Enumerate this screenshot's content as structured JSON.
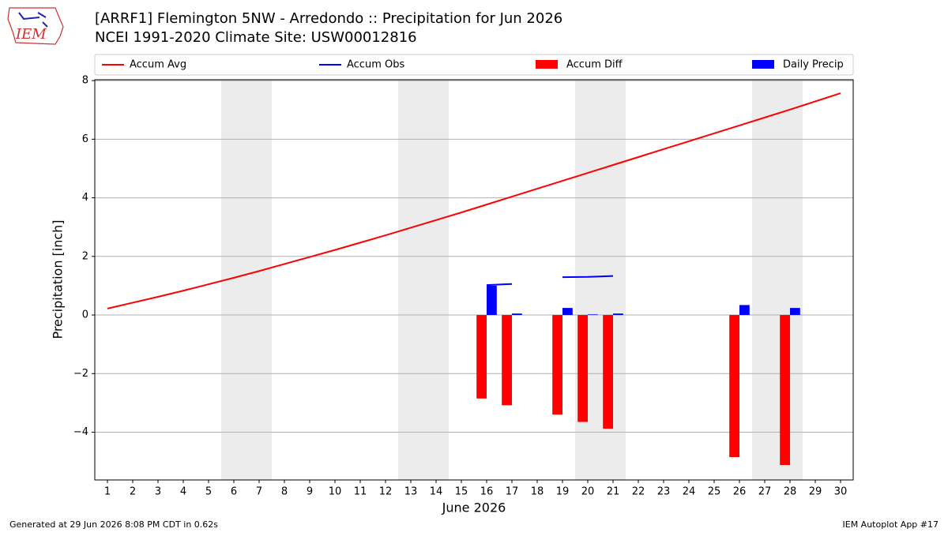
{
  "logo": {
    "text": "IEM"
  },
  "footer": {
    "left": "Generated at 29 Jun 2026 8:08 PM CDT in 0.62s",
    "right": "IEM Autoplot App #17"
  },
  "chart_data": {
    "type": "bar",
    "title": "[ARRF1] Flemington 5NW - Arredondo :: Precipitation for Jun 2026",
    "subtitle": "NCEI 1991-2020 Climate Site: USW00012816",
    "xlabel": "June 2026",
    "ylabel": "Precipitation [inch]",
    "x": [
      1,
      2,
      3,
      4,
      5,
      6,
      7,
      8,
      9,
      10,
      11,
      12,
      13,
      14,
      15,
      16,
      17,
      18,
      19,
      20,
      21,
      22,
      23,
      24,
      25,
      26,
      27,
      28,
      29,
      30
    ],
    "xlim": [
      0.5,
      30.5
    ],
    "xticks": [
      1,
      2,
      3,
      4,
      5,
      6,
      7,
      8,
      9,
      10,
      11,
      12,
      13,
      14,
      15,
      16,
      17,
      18,
      19,
      20,
      21,
      22,
      23,
      24,
      25,
      26,
      27,
      28,
      29,
      30
    ],
    "ylim": [
      -5.63,
      8.03
    ],
    "yticks": [
      {
        "value": -4,
        "label": "−4"
      },
      {
        "value": -2,
        "label": "−2"
      },
      0,
      2,
      4,
      6,
      8
    ],
    "grid": true,
    "series": [
      {
        "name": "Accum Avg",
        "type": "line",
        "color": "#ff0000",
        "values": [
          0.22,
          0.42,
          0.62,
          0.83,
          1.05,
          1.27,
          1.5,
          1.74,
          1.98,
          2.22,
          2.47,
          2.72,
          2.98,
          3.24,
          3.5,
          3.77,
          4.04,
          4.31,
          4.58,
          4.85,
          5.12,
          5.39,
          5.66,
          5.93,
          6.2,
          6.47,
          6.74,
          7.01,
          7.29,
          7.57
        ]
      },
      {
        "name": "Accum Obs",
        "type": "line",
        "color": "#0000ff",
        "values": [
          null,
          null,
          null,
          null,
          null,
          null,
          null,
          null,
          null,
          null,
          null,
          null,
          null,
          null,
          null,
          1.02,
          1.06,
          null,
          1.29,
          1.3,
          1.33,
          null,
          null,
          null,
          null,
          null,
          null,
          null,
          null,
          null
        ]
      },
      {
        "name": "Accum Diff",
        "type": "bar",
        "color": "#ff0000",
        "values": [
          null,
          null,
          null,
          null,
          null,
          null,
          null,
          null,
          null,
          null,
          null,
          null,
          null,
          null,
          null,
          -2.85,
          -3.08,
          null,
          -3.4,
          -3.65,
          -3.88,
          null,
          null,
          null,
          null,
          -4.85,
          null,
          -5.12,
          null,
          null
        ]
      },
      {
        "name": "Daily Precip",
        "type": "bar",
        "color": "#0000ff",
        "values": [
          null,
          null,
          null,
          null,
          null,
          null,
          null,
          null,
          null,
          null,
          null,
          null,
          null,
          null,
          null,
          1.0,
          0.05,
          null,
          0.24,
          0.02,
          0.05,
          null,
          null,
          null,
          null,
          0.34,
          null,
          0.24,
          null,
          null
        ]
      }
    ]
  }
}
